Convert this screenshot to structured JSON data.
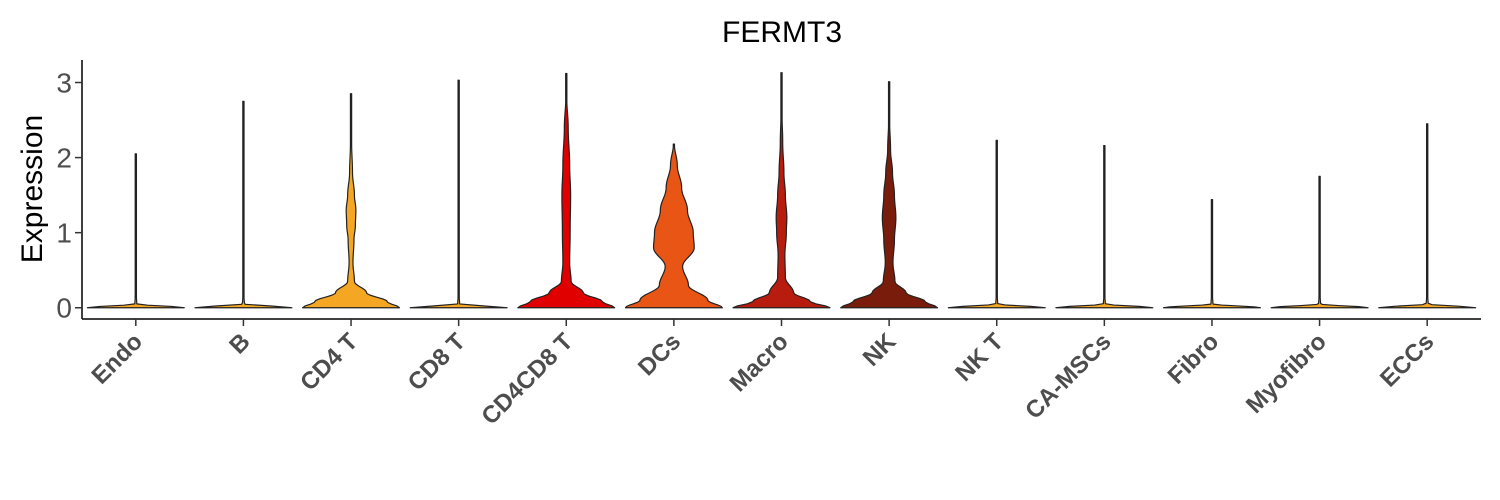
{
  "chart_data": {
    "type": "violin",
    "title": "FERMT3",
    "xlabel": "",
    "ylabel": "Expression",
    "ylim": [
      -0.15,
      3.3
    ],
    "yticks": [
      0,
      1,
      2,
      3
    ],
    "grid": false,
    "legend": "none",
    "categories": [
      "Endo",
      "B",
      "CD4 T",
      "CD8 T",
      "CD4CD8 T",
      "DCs",
      "Macro",
      "NK",
      "NK T",
      "CA-MSCs",
      "Fibro",
      "Myofibro",
      "ECCs"
    ],
    "colors": [
      "#fdd49e",
      "#fdc58a",
      "#fdb46f",
      "#fca85e",
      "#e00000",
      "#e85515",
      "#c81b0f",
      "#b11a0a",
      "#f7efe0",
      "#f7efe0",
      "#f7efe0",
      "#f7efe0",
      "#f7efe0"
    ],
    "violin_colors_used": [
      "#f5a623",
      "#f5a623",
      "#f5a623",
      "#f5a623",
      "#e00000",
      "#e85515",
      "#b81c0e",
      "#7a1c0c",
      "#f5a623",
      "#f5a623",
      "#f5a623",
      "#f5a623",
      "#f5a623"
    ],
    "max_values": [
      2.05,
      2.75,
      2.85,
      3.03,
      3.12,
      2.18,
      3.13,
      3.01,
      2.23,
      2.16,
      1.44,
      1.75,
      2.45
    ],
    "density_profiles": [
      {
        "y": [
          0,
          0.05,
          0.2,
          1.0,
          2.05
        ],
        "w": [
          1.0,
          0.02,
          0.005,
          0.004,
          0.003
        ]
      },
      {
        "y": [
          0,
          0.05,
          0.2,
          1.0,
          2.75
        ],
        "w": [
          1.0,
          0.02,
          0.005,
          0.004,
          0.003
        ]
      },
      {
        "y": [
          0,
          0.08,
          0.2,
          0.35,
          0.6,
          0.9,
          1.1,
          1.3,
          1.5,
          1.8,
          2.2,
          2.85
        ],
        "w": [
          1.0,
          0.75,
          0.32,
          0.07,
          0.04,
          0.06,
          0.09,
          0.1,
          0.07,
          0.03,
          0.012,
          0.003
        ]
      },
      {
        "y": [
          0,
          0.05,
          0.2,
          1.0,
          3.03
        ],
        "w": [
          1.0,
          0.02,
          0.005,
          0.004,
          0.003
        ]
      },
      {
        "y": [
          0,
          0.08,
          0.2,
          0.35,
          0.6,
          1.0,
          1.5,
          1.9,
          2.4,
          2.8,
          3.12
        ],
        "w": [
          1.0,
          0.75,
          0.35,
          0.1,
          0.07,
          0.08,
          0.09,
          0.07,
          0.04,
          0.01,
          0.003
        ]
      },
      {
        "y": [
          0,
          0.1,
          0.3,
          0.55,
          0.8,
          1.0,
          1.3,
          1.6,
          1.9,
          2.18
        ],
        "w": [
          1.0,
          0.7,
          0.3,
          0.18,
          0.42,
          0.4,
          0.28,
          0.16,
          0.07,
          0.01
        ]
      },
      {
        "y": [
          0,
          0.08,
          0.2,
          0.4,
          0.7,
          1.0,
          1.2,
          1.5,
          1.8,
          2.2,
          2.6,
          3.13
        ],
        "w": [
          1.0,
          0.6,
          0.25,
          0.08,
          0.07,
          0.1,
          0.11,
          0.08,
          0.05,
          0.025,
          0.01,
          0.003
        ]
      },
      {
        "y": [
          0,
          0.08,
          0.2,
          0.35,
          0.6,
          0.9,
          1.2,
          1.5,
          1.8,
          2.1,
          2.5,
          3.01
        ],
        "w": [
          1.0,
          0.75,
          0.35,
          0.12,
          0.08,
          0.11,
          0.14,
          0.11,
          0.07,
          0.03,
          0.01,
          0.003
        ]
      },
      {
        "y": [
          0,
          0.05,
          0.2,
          1.0,
          2.23
        ],
        "w": [
          1.0,
          0.02,
          0.005,
          0.004,
          0.003
        ]
      },
      {
        "y": [
          0,
          0.05,
          0.2,
          1.0,
          2.16
        ],
        "w": [
          1.0,
          0.02,
          0.005,
          0.004,
          0.003
        ]
      },
      {
        "y": [
          0,
          0.05,
          0.2,
          0.8,
          1.44
        ],
        "w": [
          1.0,
          0.02,
          0.005,
          0.004,
          0.003
        ]
      },
      {
        "y": [
          0,
          0.05,
          0.2,
          1.0,
          1.75
        ],
        "w": [
          1.0,
          0.02,
          0.005,
          0.004,
          0.003
        ]
      },
      {
        "y": [
          0,
          0.05,
          0.2,
          1.0,
          2.45
        ],
        "w": [
          1.0,
          0.02,
          0.005,
          0.004,
          0.003
        ]
      }
    ]
  }
}
